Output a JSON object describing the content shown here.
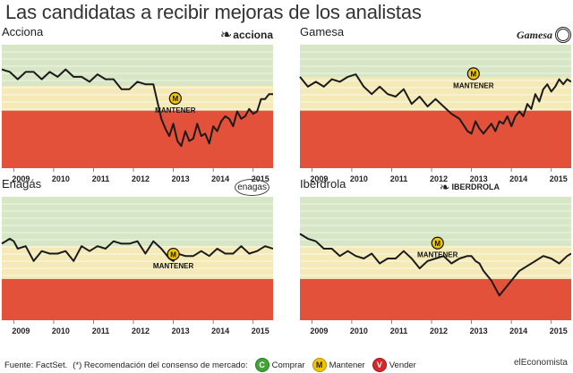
{
  "title": "Las candidatas a recibir mejoras de los analistas",
  "footer": {
    "source": "Fuente: FactSet.",
    "note": "(*) Recomendación del consenso de mercado:",
    "legend": [
      {
        "letter": "C",
        "label": "Comprar",
        "color": "#3fa535"
      },
      {
        "letter": "M",
        "label": "Mantener",
        "color": "#f2c500"
      },
      {
        "letter": "V",
        "label": "Vender",
        "color": "#d9262c"
      }
    ]
  },
  "brand": "elEconomista",
  "colors": {
    "green": "#d7e6c5",
    "yellow": "#f4eab8",
    "red": "#e4513b",
    "line": "#1a1a1a",
    "badge": "#f2c500"
  },
  "chart_data": [
    {
      "type": "line",
      "title": "Acciona",
      "logo": "acciona",
      "badge": {
        "label": "MANTENER",
        "letter": "M",
        "x": 2013.05,
        "y": 2.5
      },
      "x_ticks": [
        "2009",
        "2010",
        "2011",
        "2012",
        "2013",
        "2014",
        "2015"
      ],
      "xlim": [
        2008.7,
        2015.5
      ],
      "ylim": [
        0,
        5
      ],
      "bands": {
        "green": [
          3.33,
          5
        ],
        "yellow": [
          2.33,
          3.33
        ],
        "red": [
          0,
          2.33
        ]
      },
      "x": [
        2008.7,
        2008.9,
        2009.1,
        2009.3,
        2009.5,
        2009.7,
        2009.9,
        2010.1,
        2010.3,
        2010.5,
        2010.7,
        2010.9,
        2011.1,
        2011.3,
        2011.5,
        2011.7,
        2011.9,
        2012.1,
        2012.3,
        2012.5,
        2012.7,
        2012.8,
        2012.9,
        2013.0,
        2013.1,
        2013.2,
        2013.3,
        2013.4,
        2013.5,
        2013.6,
        2013.7,
        2013.8,
        2013.9,
        2014.0,
        2014.1,
        2014.2,
        2014.3,
        2014.4,
        2014.5,
        2014.6,
        2014.7,
        2014.8,
        2014.9,
        2015.0,
        2015.1,
        2015.2,
        2015.3,
        2015.4,
        2015.5
      ],
      "y": [
        4.0,
        3.9,
        3.6,
        3.9,
        3.9,
        3.6,
        3.9,
        3.7,
        4.0,
        3.7,
        3.7,
        3.5,
        3.8,
        3.6,
        3.6,
        3.2,
        3.2,
        3.5,
        3.4,
        3.4,
        2.0,
        1.6,
        1.3,
        1.8,
        1.1,
        0.9,
        1.5,
        1.1,
        1.2,
        1.8,
        1.3,
        1.4,
        1.0,
        1.7,
        1.5,
        1.9,
        2.1,
        2.0,
        1.7,
        2.3,
        2.0,
        2.1,
        2.4,
        2.2,
        2.3,
        2.8,
        2.8,
        3.0,
        3.0
      ]
    },
    {
      "type": "line",
      "title": "Gamesa",
      "logo": "Gamesa",
      "badge": {
        "label": "MANTENER",
        "letter": "M",
        "x": 2013.05,
        "y": 3.5
      },
      "x_ticks": [
        "2009",
        "2010",
        "2011",
        "2012",
        "2013",
        "2014",
        "2015"
      ],
      "xlim": [
        2008.7,
        2015.5
      ],
      "ylim": [
        0,
        5
      ],
      "bands": {
        "green": [
          3.67,
          5
        ],
        "yellow": [
          2.33,
          3.67
        ],
        "red": [
          0,
          2.33
        ]
      },
      "x": [
        2008.7,
        2008.9,
        2009.1,
        2009.3,
        2009.5,
        2009.7,
        2009.9,
        2010.1,
        2010.3,
        2010.5,
        2010.7,
        2010.9,
        2011.1,
        2011.3,
        2011.5,
        2011.7,
        2011.9,
        2012.1,
        2012.3,
        2012.5,
        2012.7,
        2012.9,
        2013.0,
        2013.1,
        2013.2,
        2013.3,
        2013.4,
        2013.5,
        2013.6,
        2013.7,
        2013.8,
        2013.9,
        2014.0,
        2014.1,
        2014.2,
        2014.3,
        2014.4,
        2014.5,
        2014.6,
        2014.7,
        2014.8,
        2014.9,
        2015.0,
        2015.1,
        2015.2,
        2015.3,
        2015.4,
        2015.5
      ],
      "y": [
        3.7,
        3.3,
        3.5,
        3.3,
        3.6,
        3.5,
        3.7,
        3.8,
        3.3,
        3.0,
        3.3,
        3.0,
        2.9,
        3.2,
        2.6,
        2.9,
        2.5,
        2.8,
        2.5,
        2.2,
        2.0,
        1.5,
        1.4,
        1.9,
        1.6,
        1.4,
        1.6,
        1.8,
        1.5,
        1.9,
        1.8,
        2.1,
        1.7,
        2.1,
        2.3,
        2.1,
        2.6,
        2.4,
        3.0,
        2.7,
        3.2,
        3.4,
        3.1,
        3.3,
        3.6,
        3.4,
        3.6,
        3.5
      ]
    },
    {
      "type": "line",
      "title": "Enagás",
      "logo": "enagas",
      "badge": {
        "label": "MANTENER",
        "letter": "M",
        "x": 2013.0,
        "y": 2.35
      },
      "x_ticks": [
        "2009",
        "2010",
        "2011",
        "2012",
        "2013",
        "2014",
        "2015"
      ],
      "xlim": [
        2008.7,
        2015.5
      ],
      "ylim": [
        0,
        5
      ],
      "bands": {
        "green": [
          3.0,
          5
        ],
        "yellow": [
          1.67,
          3.0
        ],
        "red": [
          0,
          1.67
        ]
      },
      "x": [
        2008.7,
        2008.9,
        2009.0,
        2009.1,
        2009.3,
        2009.5,
        2009.7,
        2009.9,
        2010.1,
        2010.3,
        2010.5,
        2010.7,
        2010.9,
        2011.1,
        2011.3,
        2011.5,
        2011.7,
        2011.9,
        2012.1,
        2012.3,
        2012.5,
        2012.7,
        2012.9,
        2013.0,
        2013.1,
        2013.3,
        2013.5,
        2013.7,
        2013.9,
        2014.1,
        2014.3,
        2014.5,
        2014.7,
        2014.9,
        2015.1,
        2015.3,
        2015.5
      ],
      "y": [
        3.1,
        3.3,
        3.2,
        2.9,
        3.0,
        2.4,
        2.8,
        2.7,
        2.7,
        2.8,
        2.4,
        3.0,
        2.8,
        3.0,
        2.9,
        3.2,
        3.1,
        3.1,
        3.2,
        2.7,
        3.2,
        2.9,
        2.5,
        2.4,
        2.7,
        2.6,
        2.6,
        2.8,
        2.6,
        2.9,
        2.7,
        2.7,
        3.0,
        2.7,
        2.8,
        3.0,
        2.9
      ]
    },
    {
      "type": "line",
      "title": "Iberdrola",
      "logo": "IBERDROLA",
      "badge": {
        "label": "MANTENER",
        "letter": "M",
        "x": 2012.15,
        "y": 2.8
      },
      "x_ticks": [
        "2009",
        "2010",
        "2011",
        "2012",
        "2013",
        "2014",
        "2015"
      ],
      "xlim": [
        2008.7,
        2015.5
      ],
      "ylim": [
        0,
        5
      ],
      "bands": {
        "green": [
          3.0,
          5
        ],
        "yellow": [
          1.67,
          3.0
        ],
        "red": [
          0,
          1.67
        ]
      },
      "x": [
        2008.7,
        2008.9,
        2009.1,
        2009.3,
        2009.5,
        2009.7,
        2009.9,
        2010.1,
        2010.3,
        2010.5,
        2010.7,
        2010.9,
        2011.1,
        2011.3,
        2011.5,
        2011.7,
        2011.9,
        2012.1,
        2012.3,
        2012.5,
        2012.7,
        2012.9,
        2013.0,
        2013.1,
        2013.2,
        2013.3,
        2013.4,
        2013.5,
        2013.6,
        2013.7,
        2013.8,
        2013.9,
        2014.0,
        2014.1,
        2014.2,
        2014.4,
        2014.6,
        2014.8,
        2015.0,
        2015.2,
        2015.4,
        2015.5
      ],
      "y": [
        3.5,
        3.3,
        3.2,
        2.9,
        2.9,
        2.6,
        2.8,
        2.6,
        2.5,
        2.7,
        2.3,
        2.5,
        2.5,
        2.8,
        2.5,
        2.1,
        2.4,
        2.5,
        2.6,
        2.3,
        2.5,
        2.6,
        2.6,
        2.4,
        2.3,
        2.0,
        1.8,
        1.6,
        1.3,
        1.0,
        1.2,
        1.4,
        1.6,
        1.8,
        2.0,
        2.2,
        2.4,
        2.6,
        2.5,
        2.3,
        2.6,
        2.7
      ]
    }
  ]
}
